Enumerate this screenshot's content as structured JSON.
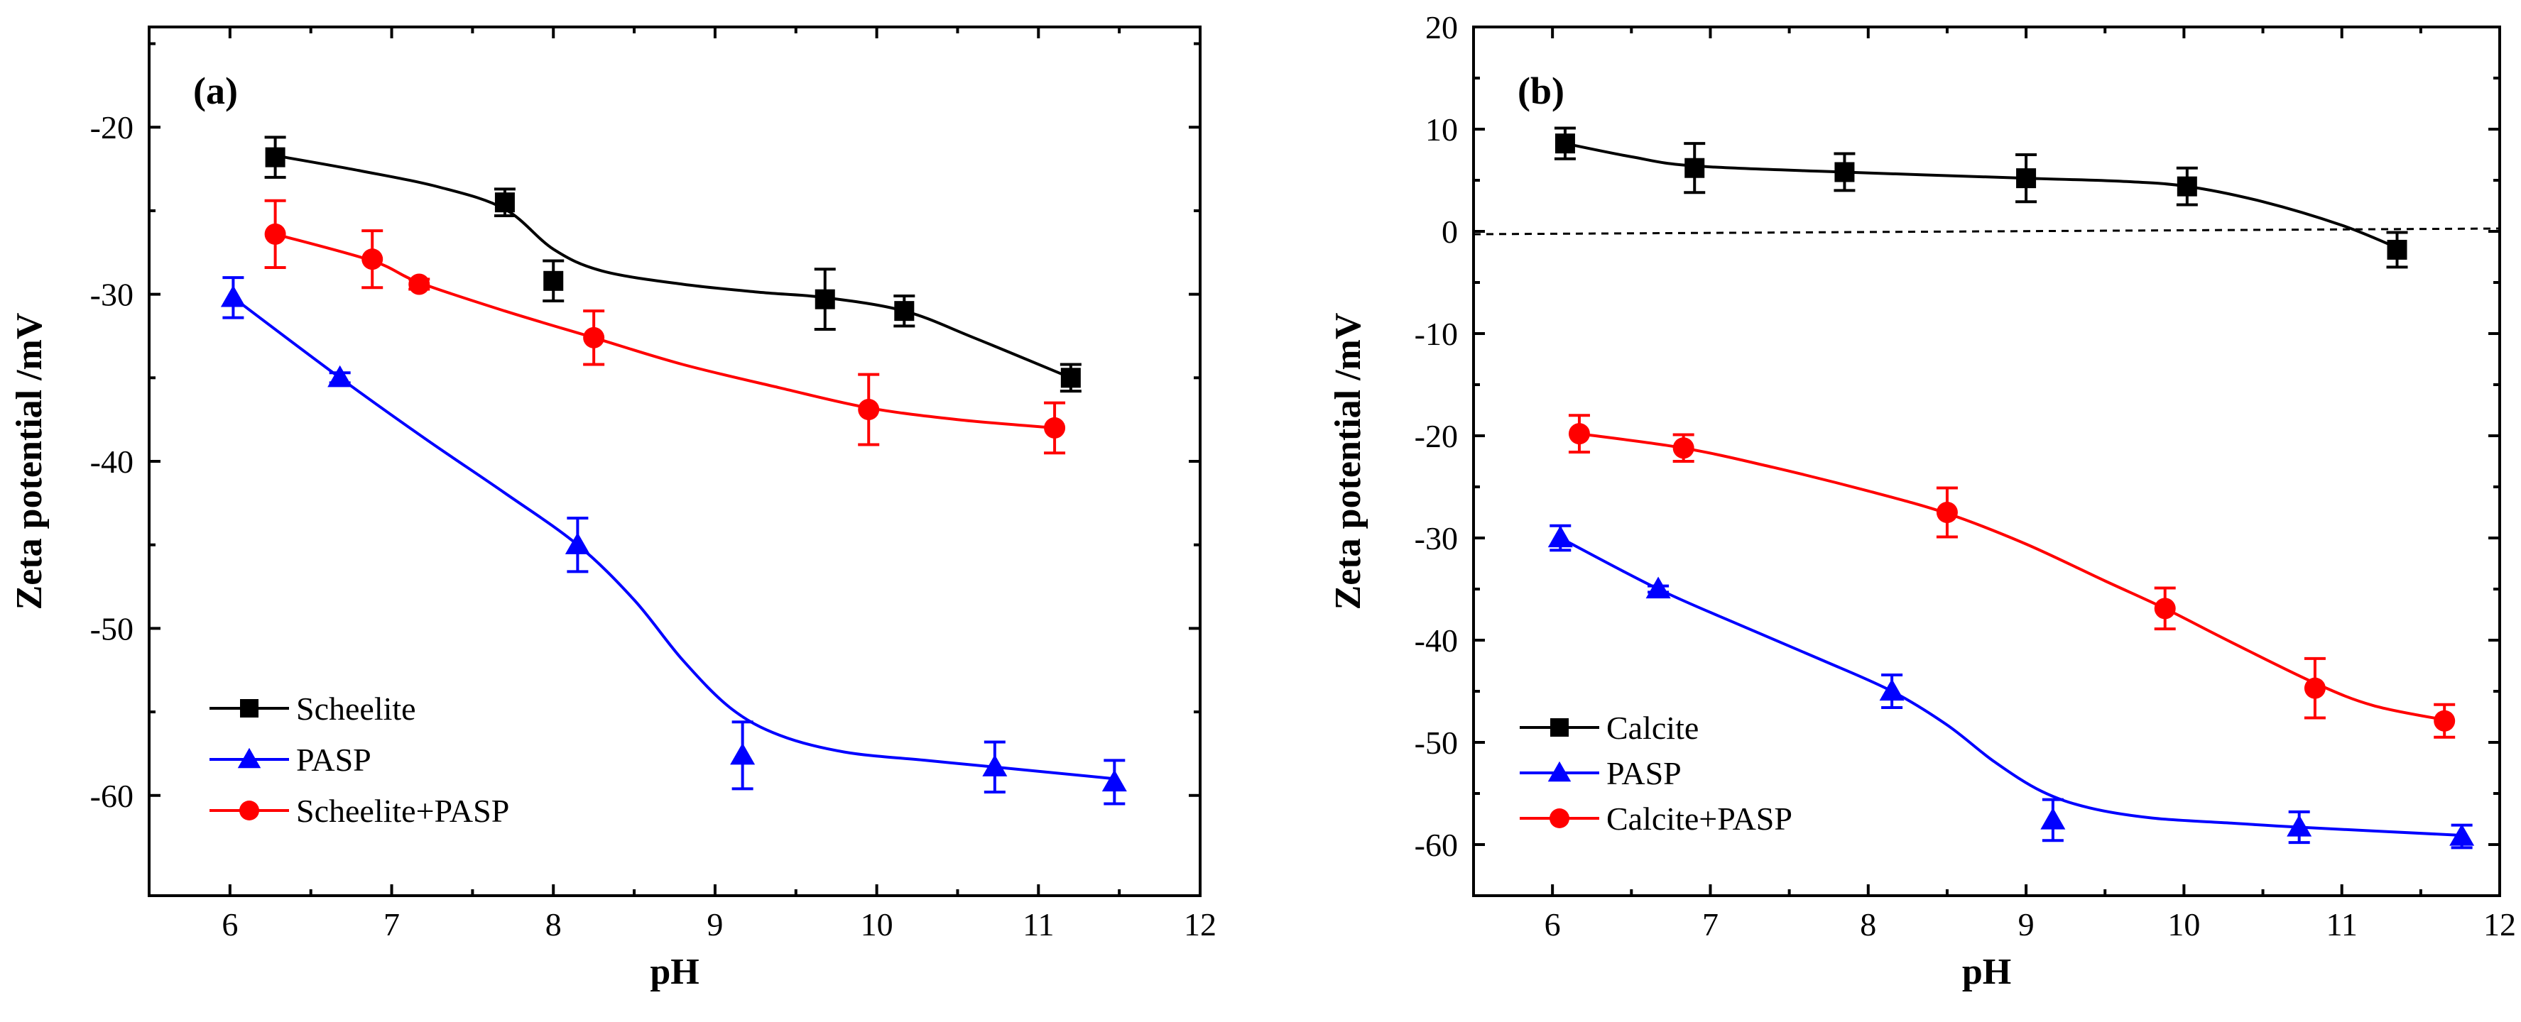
{
  "chart_data": [
    {
      "type": "line",
      "panel_label": "(a)",
      "xlabel": "pH",
      "ylabel": "Zeta potential /mV",
      "xlim": [
        5.5,
        12
      ],
      "ylim": [
        -66,
        -14
      ],
      "xticks": [
        6,
        7,
        8,
        9,
        10,
        11,
        12
      ],
      "yticks": [
        -60,
        -50,
        -40,
        -30,
        -20
      ],
      "legend_position": "bottom-left",
      "series": [
        {
          "name": "Scheelite",
          "color": "#000000",
          "marker": "square",
          "points": [
            {
              "x": 6.28,
              "y": -21.8,
              "err": 1.2
            },
            {
              "x": 7.7,
              "y": -24.5,
              "err": 0.8
            },
            {
              "x": 8.0,
              "y": -29.2,
              "err": 1.2
            },
            {
              "x": 9.68,
              "y": -30.3,
              "err": 1.8
            },
            {
              "x": 10.17,
              "y": -31.0,
              "err": 0.9
            },
            {
              "x": 11.2,
              "y": -35.0,
              "err": 0.8
            }
          ],
          "curve": [
            {
              "x": 6.28,
              "y": -21.7
            },
            {
              "x": 6.8,
              "y": -22.6
            },
            {
              "x": 7.3,
              "y": -23.6
            },
            {
              "x": 7.7,
              "y": -24.9
            },
            {
              "x": 8.0,
              "y": -27.3
            },
            {
              "x": 8.3,
              "y": -28.6
            },
            {
              "x": 8.8,
              "y": -29.4
            },
            {
              "x": 9.3,
              "y": -29.9
            },
            {
              "x": 9.68,
              "y": -30.2
            },
            {
              "x": 10.17,
              "y": -31.0
            },
            {
              "x": 10.6,
              "y": -32.6
            },
            {
              "x": 11.2,
              "y": -35.0
            }
          ]
        },
        {
          "name": "PASP",
          "color": "#0000ff",
          "marker": "triangle",
          "points": [
            {
              "x": 6.02,
              "y": -30.2,
              "err": 1.2
            },
            {
              "x": 6.68,
              "y": -35.0,
              "err": 0.3
            },
            {
              "x": 8.15,
              "y": -45.0,
              "err": 1.6
            },
            {
              "x": 9.17,
              "y": -57.6,
              "err": 2.0
            },
            {
              "x": 10.73,
              "y": -58.3,
              "err": 1.5
            },
            {
              "x": 11.47,
              "y": -59.2,
              "err": 1.3
            }
          ],
          "curve": [
            {
              "x": 6.02,
              "y": -30.2
            },
            {
              "x": 6.68,
              "y": -35.0
            },
            {
              "x": 7.2,
              "y": -38.6
            },
            {
              "x": 7.7,
              "y": -41.9
            },
            {
              "x": 8.15,
              "y": -45.0
            },
            {
              "x": 8.5,
              "y": -48.3
            },
            {
              "x": 8.8,
              "y": -51.9
            },
            {
              "x": 9.1,
              "y": -54.8
            },
            {
              "x": 9.4,
              "y": -56.4
            },
            {
              "x": 9.8,
              "y": -57.4
            },
            {
              "x": 10.3,
              "y": -57.9
            },
            {
              "x": 10.73,
              "y": -58.3
            },
            {
              "x": 11.47,
              "y": -59.0
            }
          ]
        },
        {
          "name": "Scheelite+PASP",
          "color": "#ff0000",
          "marker": "circle",
          "points": [
            {
              "x": 6.28,
              "y": -26.4,
              "err": 2.0
            },
            {
              "x": 6.88,
              "y": -27.9,
              "err": 1.7
            },
            {
              "x": 7.17,
              "y": -29.4,
              "err": 0.3
            },
            {
              "x": 8.25,
              "y": -32.6,
              "err": 1.6
            },
            {
              "x": 9.95,
              "y": -36.9,
              "err": 2.1
            },
            {
              "x": 11.1,
              "y": -38.0,
              "err": 1.5
            }
          ],
          "curve": [
            {
              "x": 6.28,
              "y": -26.4
            },
            {
              "x": 6.88,
              "y": -28.0
            },
            {
              "x": 7.17,
              "y": -29.3
            },
            {
              "x": 7.7,
              "y": -31.0
            },
            {
              "x": 8.25,
              "y": -32.6
            },
            {
              "x": 8.8,
              "y": -34.2
            },
            {
              "x": 9.4,
              "y": -35.6
            },
            {
              "x": 9.95,
              "y": -36.8
            },
            {
              "x": 10.5,
              "y": -37.5
            },
            {
              "x": 11.1,
              "y": -38.0
            }
          ]
        }
      ]
    },
    {
      "type": "line",
      "panel_label": "(b)",
      "xlabel": "pH",
      "ylabel": "Zeta potential /mV",
      "xlim": [
        5.5,
        12
      ],
      "ylim": [
        -65,
        20
      ],
      "xticks": [
        6,
        7,
        8,
        9,
        10,
        11,
        12
      ],
      "yticks": [
        -60,
        -50,
        -40,
        -30,
        -20,
        -10,
        0,
        10,
        20
      ],
      "reference_line_y": 0,
      "legend_position": "bottom-left",
      "series": [
        {
          "name": "Calcite",
          "color": "#000000",
          "marker": "square",
          "points": [
            {
              "x": 6.08,
              "y": 8.6,
              "err": 1.5
            },
            {
              "x": 6.9,
              "y": 6.2,
              "err": 2.4
            },
            {
              "x": 7.85,
              "y": 5.8,
              "err": 1.8
            },
            {
              "x": 9.0,
              "y": 5.2,
              "err": 2.3
            },
            {
              "x": 10.02,
              "y": 4.4,
              "err": 1.8
            },
            {
              "x": 11.35,
              "y": -1.8,
              "err": 1.7
            }
          ],
          "curve": [
            {
              "x": 6.08,
              "y": 8.6
            },
            {
              "x": 6.5,
              "y": 7.3
            },
            {
              "x": 6.9,
              "y": 6.4
            },
            {
              "x": 7.85,
              "y": 5.8
            },
            {
              "x": 9.0,
              "y": 5.2
            },
            {
              "x": 9.6,
              "y": 4.9
            },
            {
              "x": 10.02,
              "y": 4.4
            },
            {
              "x": 10.5,
              "y": 2.9
            },
            {
              "x": 11.0,
              "y": 0.6
            },
            {
              "x": 11.35,
              "y": -1.6
            }
          ]
        },
        {
          "name": "PASP",
          "color": "#0000ff",
          "marker": "triangle",
          "points": [
            {
              "x": 6.05,
              "y": -30.0,
              "err": 1.2
            },
            {
              "x": 6.67,
              "y": -35.0,
              "err": 0.3
            },
            {
              "x": 8.15,
              "y": -45.0,
              "err": 1.6
            },
            {
              "x": 9.17,
              "y": -57.6,
              "err": 2.0
            },
            {
              "x": 10.73,
              "y": -58.3,
              "err": 1.5
            },
            {
              "x": 11.76,
              "y": -59.2,
              "err": 1.1
            }
          ],
          "curve": [
            {
              "x": 6.05,
              "y": -30.0
            },
            {
              "x": 6.67,
              "y": -35.0
            },
            {
              "x": 7.2,
              "y": -38.6
            },
            {
              "x": 7.7,
              "y": -41.9
            },
            {
              "x": 8.15,
              "y": -45.0
            },
            {
              "x": 8.5,
              "y": -48.3
            },
            {
              "x": 8.8,
              "y": -51.9
            },
            {
              "x": 9.1,
              "y": -54.8
            },
            {
              "x": 9.4,
              "y": -56.4
            },
            {
              "x": 9.8,
              "y": -57.4
            },
            {
              "x": 10.3,
              "y": -57.9
            },
            {
              "x": 10.73,
              "y": -58.3
            },
            {
              "x": 11.76,
              "y": -59.1
            }
          ]
        },
        {
          "name": "Calcite+PASP",
          "color": "#ff0000",
          "marker": "circle",
          "points": [
            {
              "x": 6.17,
              "y": -19.8,
              "err": 1.8
            },
            {
              "x": 6.83,
              "y": -21.2,
              "err": 1.3
            },
            {
              "x": 8.5,
              "y": -27.5,
              "err": 2.4
            },
            {
              "x": 9.88,
              "y": -36.9,
              "err": 2.0
            },
            {
              "x": 10.83,
              "y": -44.7,
              "err": 2.9
            },
            {
              "x": 11.65,
              "y": -47.9,
              "err": 1.6
            }
          ],
          "curve": [
            {
              "x": 6.17,
              "y": -19.8
            },
            {
              "x": 6.83,
              "y": -21.2
            },
            {
              "x": 7.4,
              "y": -23.1
            },
            {
              "x": 8.0,
              "y": -25.4
            },
            {
              "x": 8.5,
              "y": -27.6
            },
            {
              "x": 9.0,
              "y": -30.6
            },
            {
              "x": 9.5,
              "y": -34.2
            },
            {
              "x": 9.88,
              "y": -36.9
            },
            {
              "x": 10.3,
              "y": -40.2
            },
            {
              "x": 10.83,
              "y": -44.2
            },
            {
              "x": 11.2,
              "y": -46.4
            },
            {
              "x": 11.65,
              "y": -47.8
            }
          ]
        }
      ]
    }
  ]
}
